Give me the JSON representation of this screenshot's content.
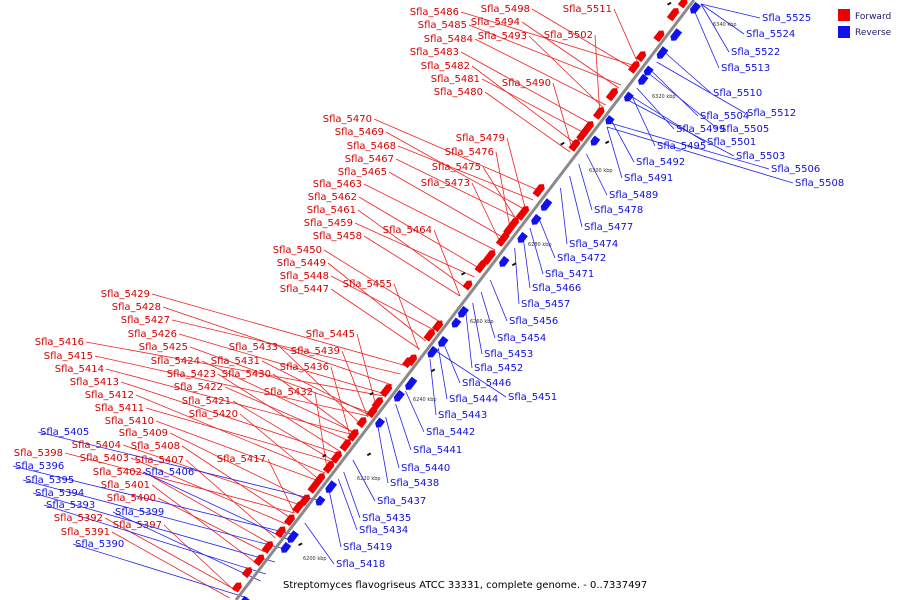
{
  "caption": "Streptomyces flavogriseus ATCC 33331, complete genome. - 0..7337497",
  "legend": [
    {
      "label": "Forward",
      "color": "#ee0000"
    },
    {
      "label": "Reverse",
      "color": "#1111ee"
    }
  ],
  "positions": [
    "6200 kbp",
    "6220 kbp",
    "6240 kbp",
    "6260 kbp",
    "6280 kbp",
    "6300 kbp",
    "6320 kbp",
    "6340 kbp"
  ],
  "forward_genes": [
    "Sfla_5511",
    "Sfla_5498",
    "Sfla_5494",
    "Sfla_5493",
    "Sfla_5502",
    "Sfla_5486",
    "Sfla_5485",
    "Sfla_5484",
    "Sfla_5483",
    "Sfla_5482",
    "Sfla_5481",
    "Sfla_5480",
    "Sfla_5490",
    "Sfla_5470",
    "Sfla_5469",
    "Sfla_5468",
    "Sfla_5467",
    "Sfla_5465",
    "Sfla_5479",
    "Sfla_5476",
    "Sfla_5475",
    "Sfla_5473",
    "Sfla_5463",
    "Sfla_5462",
    "Sfla_5461",
    "Sfla_5459",
    "Sfla_5458",
    "Sfla_5464",
    "Sfla_5450",
    "Sfla_5449",
    "Sfla_5448",
    "Sfla_5447",
    "Sfla_5455",
    "Sfla_5429",
    "Sfla_5428",
    "Sfla_5427",
    "Sfla_5426",
    "Sfla_5425",
    "Sfla_5424",
    "Sfla_5423",
    "Sfla_5422",
    "Sfla_5421",
    "Sfla_5420",
    "Sfla_5445",
    "Sfla_5433",
    "Sfla_5431",
    "Sfla_5430",
    "Sfla_5439",
    "Sfla_5436",
    "Sfla_5432",
    "Sfla_5416",
    "Sfla_5415",
    "Sfla_5414",
    "Sfla_5413",
    "Sfla_5412",
    "Sfla_5411",
    "Sfla_5410",
    "Sfla_5409",
    "Sfla_5408",
    "Sfla_5407",
    "Sfla_5417",
    "Sfla_5404",
    "Sfla_5403",
    "Sfla_5402",
    "Sfla_5401",
    "Sfla_5400",
    "Sfla_5398",
    "Sfla_5397",
    "Sfla_5392",
    "Sfla_5391"
  ],
  "reverse_genes": [
    "Sfla_5525",
    "Sfla_5524",
    "Sfla_5522",
    "Sfla_5513",
    "Sfla_5510",
    "Sfla_5504",
    "Sfla_5512",
    "Sfla_5505",
    "Sfla_5499",
    "Sfla_5501",
    "Sfla_5495",
    "Sfla_5503",
    "Sfla_5492",
    "Sfla_5506",
    "Sfla_5491",
    "Sfla_5508",
    "Sfla_5489",
    "Sfla_5478",
    "Sfla_5477",
    "Sfla_5474",
    "Sfla_5472",
    "Sfla_5471",
    "Sfla_5466",
    "Sfla_5457",
    "Sfla_5456",
    "Sfla_5454",
    "Sfla_5453",
    "Sfla_5452",
    "Sfla_5446",
    "Sfla_5451",
    "Sfla_5444",
    "Sfla_5443",
    "Sfla_5442",
    "Sfla_5441",
    "Sfla_5440",
    "Sfla_5438",
    "Sfla_5437",
    "Sfla_5435",
    "Sfla_5434",
    "Sfla_5419",
    "Sfla_5418",
    "Sfla_5405",
    "Sfla_5396",
    "Sfla_5406",
    "Sfla_5395",
    "Sfla_5394",
    "Sfla_5399",
    "Sfla_5393",
    "Sfla_5390"
  ]
}
